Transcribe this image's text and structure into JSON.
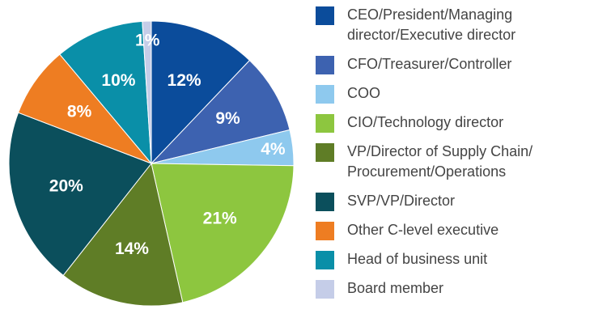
{
  "chart_data": {
    "type": "pie",
    "series": [
      {
        "name": "CEO/President/Managing director/Executive director",
        "color": "#0b4c9b",
        "values": [
          12
        ],
        "value_labels": [
          "12%"
        ]
      },
      {
        "name": "CFO/Treasurer/Controller",
        "color": "#3d62b0",
        "values": [
          9
        ],
        "value_labels": [
          "9%"
        ]
      },
      {
        "name": "COO",
        "color": "#8ec9ee",
        "values": [
          4
        ],
        "value_labels": [
          "4%"
        ]
      },
      {
        "name": "CIO/Technology director",
        "color": "#8dc63f",
        "values": [
          21
        ],
        "value_labels": [
          "21%"
        ]
      },
      {
        "name": "VP/Director of Supply Chain/ Procurement/Operations",
        "color": "#5f7d26",
        "values": [
          14
        ],
        "value_labels": [
          "14%"
        ]
      },
      {
        "name": "SVP/VP/Director",
        "color": "#0b4f5c",
        "values": [
          20
        ],
        "value_labels": [
          "20%"
        ]
      },
      {
        "name": "Other C-level executive",
        "color": "#ee7d22",
        "values": [
          8
        ],
        "value_labels": [
          "8%"
        ]
      },
      {
        "name": "Head of business unit",
        "color": "#0a8fa8",
        "values": [
          10
        ],
        "value_labels": [
          "10%"
        ]
      },
      {
        "name": "Board member",
        "color": "#c5cde8",
        "values": [
          1
        ],
        "value_labels": [
          "1%"
        ]
      }
    ]
  }
}
